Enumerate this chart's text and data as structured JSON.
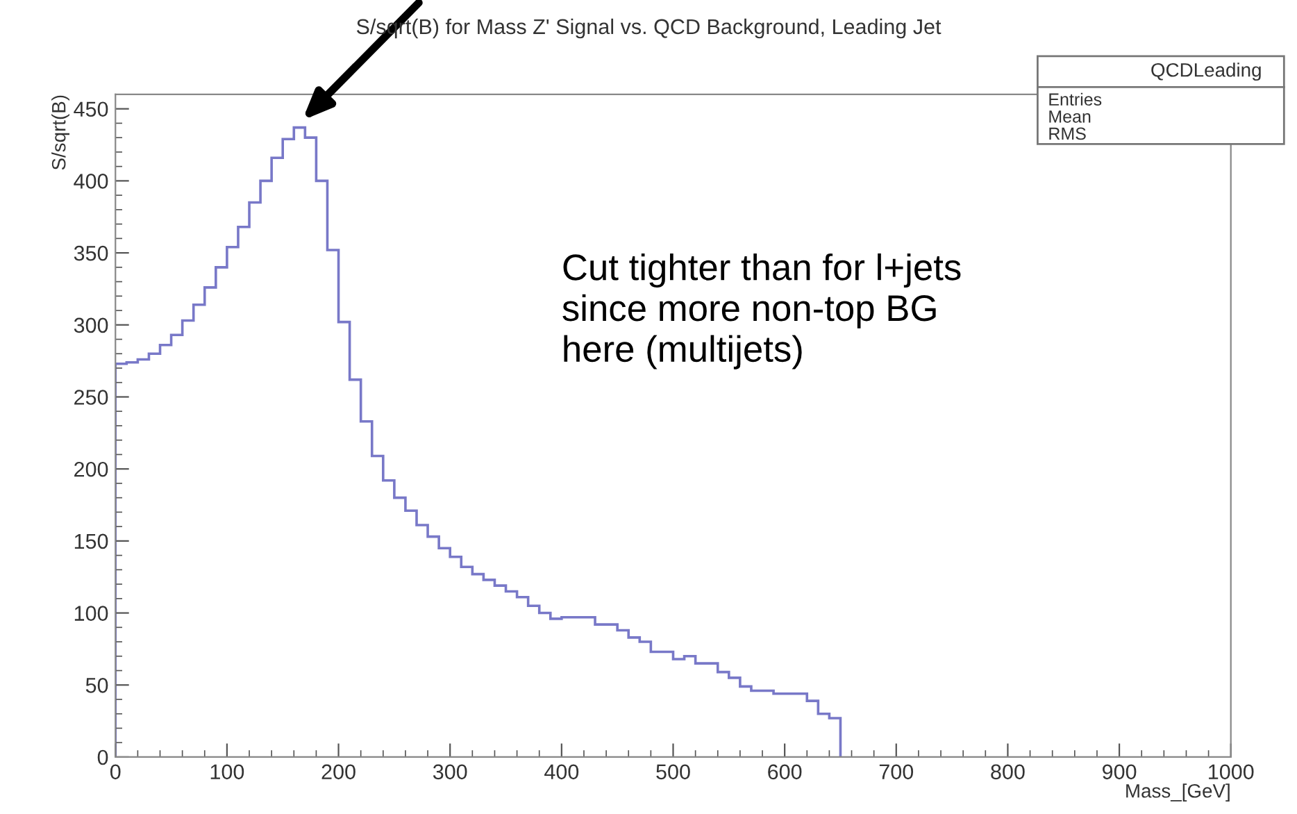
{
  "chart_data": {
    "type": "histogram",
    "title": "S/sqrt(B) for Mass Z' Signal vs. QCD Background, Leading Jet",
    "xlabel": "Mass_[GeV]",
    "ylabel": "S/sqrt(B)",
    "bins": [
      0,
      10,
      20,
      30,
      40,
      50,
      60,
      70,
      80,
      90,
      100,
      110,
      120,
      130,
      140,
      150,
      160,
      170,
      180,
      190,
      200,
      210,
      220,
      230,
      240,
      250,
      260,
      270,
      280,
      290,
      300,
      310,
      320,
      330,
      340,
      350,
      360,
      370,
      380,
      390,
      400,
      410,
      420,
      430,
      440,
      450,
      460,
      470,
      480,
      490,
      500,
      510,
      520,
      530,
      540,
      550,
      560,
      570,
      580,
      590,
      600,
      610,
      620,
      630,
      640,
      650
    ],
    "values": [
      273,
      274,
      276,
      280,
      286,
      293,
      303,
      314,
      326,
      340,
      354,
      368,
      385,
      400,
      416,
      429,
      437,
      430,
      400,
      352,
      302,
      262,
      233,
      209,
      192,
      180,
      171,
      161,
      153,
      145,
      139,
      132,
      127,
      123,
      119,
      115,
      111,
      105,
      100,
      96,
      97,
      97,
      97,
      92,
      92,
      88,
      83,
      80,
      73,
      73,
      68,
      70,
      65,
      65,
      59,
      55,
      49,
      46,
      46,
      44,
      44,
      44,
      39,
      30,
      27
    ],
    "color": "#7878c8",
    "xlim": [
      0,
      1000
    ],
    "ylim": [
      0,
      460
    ],
    "xticks": [
      0,
      100,
      200,
      300,
      400,
      500,
      600,
      700,
      800,
      900,
      1000
    ],
    "yticks": [
      0,
      50,
      100,
      150,
      200,
      250,
      300,
      350,
      400,
      450
    ],
    "grid": false,
    "annotations": [
      "Cut tighter than for l+jets\nsince more non-top BG\nhere (multijets)",
      "QCDLeading",
      "Entries",
      "Mean",
      "RMS"
    ]
  }
}
